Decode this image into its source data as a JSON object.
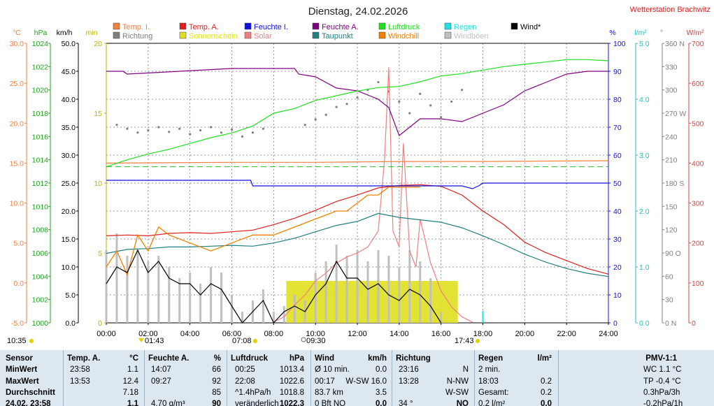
{
  "title": "Dienstag, 24.02.2026",
  "station": "Wetterstation Brachwitz",
  "legend": [
    {
      "label": "Temp. I.",
      "color": "#f08040"
    },
    {
      "label": "Temp. A.",
      "color": "#e02020"
    },
    {
      "label": "Feuchte I.",
      "color": "#1010e0"
    },
    {
      "label": "Feuchte A.",
      "color": "#800080"
    },
    {
      "label": "Luftdruck",
      "color": "#20e020"
    },
    {
      "label": "Regen",
      "color": "#20e0e0"
    },
    {
      "label": "Wind*",
      "color": "#000000"
    },
    {
      "label": "Richtung",
      "color": "#808080"
    },
    {
      "label": "Sonnenschein",
      "color": "#e0e020"
    },
    {
      "label": "Solar",
      "color": "#f08080"
    },
    {
      "label": "Taupunkt",
      "color": "#208080"
    },
    {
      "label": "Windchill",
      "color": "#f08000"
    },
    {
      "label": "Windböen",
      "color": "#c0c0c0"
    }
  ],
  "axes": {
    "temp": {
      "unit": "°C",
      "ticks": [
        "30.0",
        "25.0",
        "20.0",
        "15.0",
        "10.0",
        "5.0",
        "0.0",
        "-5.0"
      ],
      "color": "#f08040"
    },
    "pressure": {
      "unit": "hPa",
      "ticks": [
        "1024",
        "1022",
        "1020",
        "1018",
        "1016",
        "1014",
        "1012",
        "1010",
        "1008",
        "1006",
        "1004",
        "1002",
        "1000"
      ],
      "color": "#20a020"
    },
    "wind": {
      "unit": "km/h",
      "ticks": [
        "50.0",
        "45.0",
        "40.0",
        "35.0",
        "30.0",
        "25.0",
        "20.0",
        "15.0",
        "10.0",
        "5.0",
        "0.0"
      ],
      "color": "#000000"
    },
    "sun": {
      "unit": "min",
      "ticks": [
        "20",
        "15",
        "10",
        "5",
        "0"
      ],
      "color": "#c0b000"
    },
    "humidity": {
      "unit": "%",
      "ticks": [
        "100",
        "90",
        "80",
        "70",
        "60",
        "50",
        "40",
        "30",
        "20",
        "10",
        "0"
      ],
      "color": "#1010e0"
    },
    "rain": {
      "unit": "l/m²",
      "ticks": [
        "5.0",
        "4.0",
        "3.0",
        "2.0",
        "1.0",
        "0.0"
      ],
      "color": "#20c0c0"
    },
    "direction": {
      "unit": "°",
      "ticks": [
        "360 N",
        "330",
        "300",
        "270 W",
        "240",
        "210",
        "180 S",
        "150",
        "120",
        "90 O",
        "60",
        "30",
        "0 N"
      ],
      "color": "#808080"
    },
    "solar": {
      "unit": "W/m²",
      "ticks": [
        "700",
        "600",
        "500",
        "400",
        "300",
        "200",
        "100",
        "0"
      ],
      "color": "#e04040"
    },
    "time": {
      "ticks": [
        "00:00",
        "02:00",
        "04:00",
        "06:00",
        "08:00",
        "10:00",
        "12:00",
        "14:00",
        "16:00",
        "18:00",
        "20:00",
        "22:00",
        "24:00"
      ]
    }
  },
  "chart_data": {
    "type": "line",
    "title": "Dienstag, 24.02.2026",
    "x_unit": "hour",
    "xlim": [
      0,
      24
    ],
    "series": [
      {
        "name": "Temp. A.",
        "axis": "temp",
        "color": "#e02020",
        "x": [
          0,
          1,
          2,
          3,
          4,
          5,
          6,
          7,
          8,
          9,
          10,
          11,
          12,
          13,
          14,
          15,
          16,
          17,
          18,
          19,
          20,
          21,
          22,
          23,
          24
        ],
        "values": [
          5.9,
          6.0,
          5.9,
          6.2,
          6.3,
          6.2,
          6.4,
          6.6,
          7.3,
          8.1,
          9.1,
          10.2,
          11.0,
          11.9,
          12.2,
          12.3,
          12.1,
          11.0,
          9.0,
          7.3,
          5.1,
          3.8,
          2.8,
          1.8,
          1.1
        ]
      },
      {
        "name": "Taupunkt",
        "axis": "temp",
        "color": "#208080",
        "x": [
          0,
          1,
          2,
          3,
          4,
          5,
          6,
          7,
          8,
          9,
          10,
          11,
          12,
          13,
          14,
          15,
          16,
          17,
          18,
          19,
          20,
          21,
          22,
          23,
          24
        ],
        "values": [
          3.7,
          4.2,
          4.3,
          4.5,
          4.5,
          4.6,
          4.7,
          4.6,
          5.0,
          5.6,
          6.4,
          7.2,
          7.7,
          8.7,
          8.2,
          7.9,
          7.6,
          6.9,
          5.9,
          4.8,
          3.6,
          2.6,
          1.8,
          1.2,
          0.8
        ]
      },
      {
        "name": "Windchill",
        "axis": "temp",
        "color": "#f08000",
        "x": [
          0,
          0.5,
          1,
          1.5,
          2,
          2.5,
          3,
          4,
          5,
          6,
          7,
          8,
          9,
          10,
          11,
          11.5,
          12,
          12.5,
          13,
          13.5,
          14,
          14.5,
          15
        ],
        "values": [
          2,
          4,
          1,
          6,
          4,
          7,
          6,
          5,
          4,
          5,
          6,
          6,
          7,
          8,
          9,
          9,
          10,
          11,
          11,
          12,
          12,
          12,
          12
        ]
      },
      {
        "name": "Temp. I.",
        "axis": "temp",
        "color": "#f08040",
        "x": [
          0,
          6,
          10,
          14,
          18,
          24
        ],
        "values": [
          15.0,
          15.1,
          15.1,
          15.2,
          15.2,
          15.3
        ]
      },
      {
        "name": "Feuchte A.",
        "axis": "humidity",
        "color": "#800080",
        "x": [
          0,
          0.8,
          1,
          6,
          9,
          9.2,
          10,
          11,
          12,
          13,
          13.5,
          14,
          14.5,
          15,
          16,
          17,
          18,
          19,
          20,
          21,
          22,
          23,
          24
        ],
        "values": [
          90,
          90,
          89,
          91,
          91,
          89,
          88,
          84,
          83,
          80,
          77,
          67,
          70,
          73,
          73,
          72,
          75,
          78,
          83,
          86,
          89,
          90,
          90
        ]
      },
      {
        "name": "Feuchte I.",
        "axis": "humidity",
        "color": "#1010e0",
        "x": [
          0,
          6.9,
          7,
          16,
          17,
          17.5,
          17.8,
          18,
          24
        ],
        "values": [
          51,
          51,
          49,
          49,
          49,
          48,
          49,
          50,
          50
        ]
      },
      {
        "name": "Luftdruck",
        "axis": "pressure",
        "color": "#20e020",
        "x": [
          0,
          1,
          2,
          3,
          4,
          5,
          6,
          7,
          8,
          9,
          10,
          11,
          12,
          13,
          14,
          15,
          16,
          17,
          18,
          19,
          20,
          21,
          22,
          23,
          24
        ],
        "values": [
          1013.4,
          1014.0,
          1014.5,
          1014.9,
          1015.4,
          1015.9,
          1016.3,
          1016.9,
          1018.0,
          1018.4,
          1019.1,
          1019.5,
          1019.9,
          1020.2,
          1020.3,
          1020.7,
          1021.2,
          1021.4,
          1021.7,
          1022.0,
          1022.2,
          1022.4,
          1022.6,
          1022.6,
          1022.5
        ]
      },
      {
        "name": "Wind*",
        "axis": "wind",
        "color": "#000000",
        "x": [
          0,
          0.5,
          1,
          1.5,
          2,
          2.5,
          3,
          3.5,
          4,
          4.5,
          5,
          5.5,
          6,
          6.5,
          7,
          7.5,
          8,
          8.5,
          9,
          9.5,
          10,
          10.5,
          11,
          11.5,
          12,
          12.5,
          13,
          13.5,
          14,
          14.5,
          15,
          15.5,
          16
        ],
        "values": [
          7,
          10,
          9,
          13,
          9,
          11,
          8,
          7,
          7,
          5,
          7,
          6,
          3,
          0,
          2,
          4,
          0,
          2,
          3,
          2,
          5,
          7,
          11,
          8,
          8,
          6,
          7,
          5,
          4,
          6,
          5,
          3,
          0
        ]
      },
      {
        "name": "Windböen",
        "axis": "wind",
        "color": "#c0c0c0",
        "x": [
          0,
          0.5,
          1,
          1.5,
          2,
          2.5,
          3,
          3.5,
          4,
          4.5,
          5,
          5.5,
          6,
          6.5,
          7,
          7.5,
          8,
          8.5,
          9,
          9.5,
          10,
          10.5,
          11,
          11.5,
          12,
          12.5,
          13,
          13.5,
          14,
          14.5,
          15,
          15.5,
          16
        ],
        "values": [
          13,
          16,
          12,
          13,
          11,
          12,
          10,
          8,
          9,
          7,
          10,
          9,
          5,
          2,
          4,
          6,
          2,
          3,
          5,
          4,
          9,
          11,
          14,
          12,
          13,
          11,
          13,
          12,
          10,
          13,
          11,
          8,
          2
        ]
      },
      {
        "name": "Solar",
        "axis": "solar",
        "color": "#f08080",
        "x": [
          8,
          8.5,
          9,
          9.5,
          10,
          10.5,
          11,
          11.5,
          12,
          12.5,
          13,
          13.3,
          13.5,
          13.7,
          14,
          14.2,
          14.5,
          14.8,
          15,
          15.5,
          16,
          16.5,
          17,
          17.5
        ],
        "values": [
          2,
          15,
          45,
          70,
          105,
          125,
          150,
          165,
          175,
          190,
          230,
          410,
          640,
          230,
          190,
          450,
          180,
          140,
          260,
          150,
          80,
          40,
          15,
          2
        ]
      },
      {
        "name": "Richtung",
        "axis": "direction",
        "color": "#808080",
        "x": [
          0.5,
          1,
          1.5,
          2,
          2.5,
          3,
          3.5,
          4,
          4.5,
          5,
          5.5,
          6,
          6.5,
          7,
          7.5,
          9.5,
          10,
          10.5,
          11,
          11.5,
          12,
          12.5,
          13,
          13.5,
          14,
          14.5,
          15,
          15.5,
          16,
          16.5,
          17
        ],
        "values": [
          255,
          250,
          245,
          248,
          252,
          246,
          250,
          243,
          248,
          252,
          245,
          249,
          240,
          245,
          250,
          255,
          262,
          268,
          278,
          282,
          290,
          300,
          310,
          298,
          285,
          270,
          295,
          280,
          265,
          285,
          300
        ]
      },
      {
        "name": "Sonnenschein",
        "axis": "sun",
        "color": "#e0e020",
        "x": [
          8.6,
          9,
          10,
          11,
          12,
          13,
          14,
          15,
          16,
          16.8
        ],
        "values": [
          3,
          3,
          3,
          3,
          3,
          3,
          3,
          3,
          3,
          3
        ]
      }
    ],
    "rain_mark_hour": 18.0
  },
  "time_marks": {
    "start": "10:35",
    "sunrise": "01:43",
    "t1": "07:08",
    "t2": "09:30",
    "sunset": "17:43"
  },
  "footer": {
    "headers": {
      "sensor": "Sensor",
      "temp": "Temp. A.",
      "temp_unit": "°C",
      "hum": "Feuchte A.",
      "hum_unit": "%",
      "press": "Luftdruck",
      "press_unit": "hPa",
      "wind": "Wind",
      "wind_unit": "km/h",
      "dir": "Richtung",
      "rain": "Regen",
      "rain_unit": "l/m²",
      "pmv": "PMV-1:1"
    },
    "rows": [
      {
        "label": "MinWert",
        "temp_t": "23:58",
        "temp_v": "1.1",
        "hum_t": "14:07",
        "hum_v": "66",
        "press_t": "00:25",
        "press_v": "1013.4",
        "wind_t": "Ø 10 min.",
        "wind_v": "0.0",
        "dir_t": "23:16",
        "dir_v": "N",
        "rain_t": "2 min.",
        "rain_v": "",
        "pmv": "WC 1.1 °C"
      },
      {
        "label": "MaxWert",
        "temp_t": "13:53",
        "temp_v": "12.4",
        "hum_t": "09:27",
        "hum_v": "92",
        "press_t": "22:08",
        "press_v": "1022.6",
        "wind_t": "00:17",
        "wind_v": "W-SW 16.0",
        "dir_t": "13:28",
        "dir_v": "N-NW",
        "rain_t": "18:03",
        "rain_v": "0.2",
        "pmv": "TP -0.4 °C"
      },
      {
        "label": "Durchschnitt",
        "temp_t": "",
        "temp_v": "7.18",
        "hum_t": "",
        "hum_v": "85",
        "press_t": "^1.4hPa/h",
        "press_v": "1018.8",
        "wind_t": "83.7 km",
        "wind_v": "3.5",
        "dir_t": "",
        "dir_v": "W-SW",
        "rain_t": "Gesamt:",
        "rain_v": "0.2",
        "pmv": "0.3hPa/3h"
      },
      {
        "label": "24.02. 23:58",
        "temp_t": "",
        "temp_v": "1.1",
        "hum_t": "4.70 g/m³",
        "hum_v": "90",
        "press_t": "veränderlich",
        "press_v": "1022.3",
        "wind_t": "0 Bft NO",
        "wind_v": "0.0",
        "dir_t": "34 °",
        "dir_v": "NO",
        "rain_t": "0.2 l/m²",
        "rain_v": "0.0",
        "pmv": "-0.2hPa/1h"
      }
    ]
  }
}
